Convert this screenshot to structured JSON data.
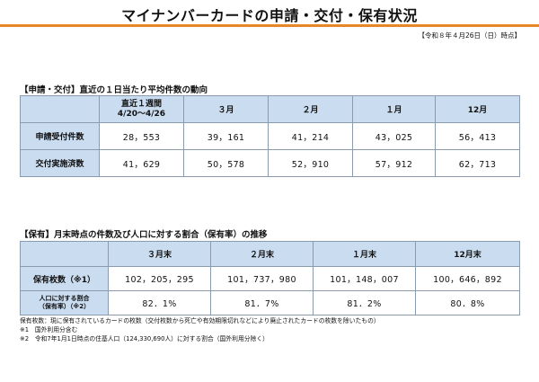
{
  "title": "マイナンバーカードの申請・交付・保有状況",
  "as_of": "【令和８年４月26日（日）時点】",
  "section1": {
    "heading": "【申請・交付】直近の１日当たり平均件数の動向",
    "columns": [
      {
        "line1": "直近１週間",
        "line2": "4/20～4/26"
      },
      {
        "line1": "３月",
        "line2": ""
      },
      {
        "line1": "２月",
        "line2": ""
      },
      {
        "line1": "１月",
        "line2": ""
      },
      {
        "line1": "12月",
        "line2": ""
      }
    ],
    "rows": [
      {
        "label": "申請受付件数",
        "values": [
          "28，553",
          "39，161",
          "41，214",
          "43，025",
          "56，413"
        ]
      },
      {
        "label": "交付実施済数",
        "values": [
          "41，629",
          "50，578",
          "52，910",
          "57，912",
          "62，713"
        ]
      }
    ]
  },
  "section2": {
    "heading": "【保有】月末時点の件数及び人口に対する割合（保有率）の推移",
    "columns": [
      "３月末",
      "２月末",
      "１月末",
      "12月末"
    ],
    "row1": {
      "label": "保有枚数（※1）",
      "values": [
        "102，205，295",
        "101，737，980",
        "101，148，007",
        "100，646，892"
      ]
    },
    "row2": {
      "label_line1": "人口に対する割合",
      "label_line2": "（保有率）（※2）",
      "values": [
        "82．1%",
        "81．7%",
        "81．2%",
        "80．8%"
      ]
    }
  },
  "notes": [
    "保有枚数：現に保有されているカードの枚数（交付枚数から死亡や有効期限切れなどにより廃止されたカードの枚数を除いたもの）",
    "※1　国外利用分含む",
    "※2　令和7年1月1日時点の住基人口（124,330,690人）に対する割合（国外利用分除く）"
  ]
}
